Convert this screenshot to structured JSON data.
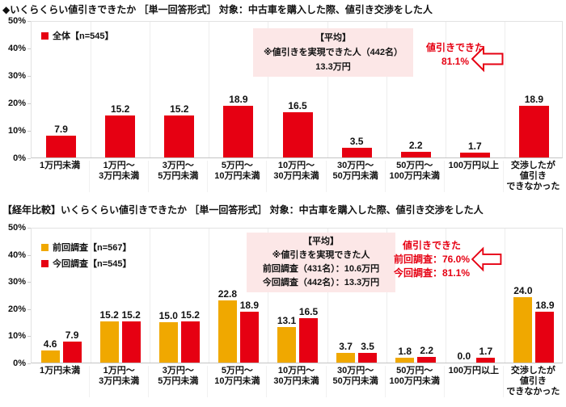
{
  "colors": {
    "red": "#E60012",
    "gold": "#F0A800",
    "annotation_bg": "#FCE7E7",
    "callout_text": "#E60012",
    "grid": "#EDEDED",
    "text": "#111111"
  },
  "y_axis": {
    "ticks": [
      "0%",
      "10%",
      "20%",
      "30%",
      "40%",
      "50%"
    ],
    "max": 50
  },
  "chart_data": [
    {
      "type": "bar",
      "title": "◆いくらくらい値引きできたか ［単一回答形式］ 対象：中古車を購入した際、値引き交渉をした人",
      "categories": [
        "1万円未満",
        "1万円～\n3万円未満",
        "3万円～\n5万円未満",
        "5万円～\n10万円未満",
        "10万円～\n30万円未満",
        "30万円～\n50万円未満",
        "50万円～\n100万円未満",
        "100万円以上",
        "交渉したが\n値引き\nできなかった"
      ],
      "series": [
        {
          "name": "全体【n=545】",
          "color": "#E60012",
          "values": [
            7.9,
            15.2,
            15.2,
            18.9,
            16.5,
            3.5,
            2.2,
            1.7,
            18.9
          ]
        }
      ],
      "ylim": [
        0,
        50
      ],
      "grid": "vertical-separators",
      "legend_position": "top-left",
      "annotation": {
        "lines": [
          "【平均】",
          "※値引きを実現できた人（442名）",
          "13.3万円"
        ]
      },
      "callout": {
        "lines": [
          "値引きできた",
          "81.1%"
        ]
      }
    },
    {
      "type": "bar",
      "title": "【経年比較】いくらくらい値引きできたか ［単一回答形式］ 対象：中古車を購入した際、値引き交渉をした人",
      "categories": [
        "1万円未満",
        "1万円～\n3万円未満",
        "3万円～\n5万円未満",
        "5万円～\n10万円未満",
        "10万円～\n30万円未満",
        "30万円～\n50万円未満",
        "50万円～\n100万円未満",
        "100万円以上",
        "交渉したが\n値引き\nできなかった"
      ],
      "series": [
        {
          "name": "前回調査【n=567】",
          "color": "#F0A800",
          "values": [
            4.6,
            15.2,
            15.0,
            22.8,
            13.1,
            3.7,
            1.8,
            0.0,
            24.0
          ]
        },
        {
          "name": "今回調査【n=545】",
          "color": "#E60012",
          "values": [
            7.9,
            15.2,
            15.2,
            18.9,
            16.5,
            3.5,
            2.2,
            1.7,
            18.9
          ]
        }
      ],
      "ylim": [
        0,
        50
      ],
      "grid": "vertical-separators",
      "legend_position": "top-left",
      "annotation": {
        "lines": [
          "【平均】",
          "※値引きを実現できた人",
          "前回調査（431名）：10.6万円",
          "今回調査（442名）：13.3万円"
        ]
      },
      "callout": {
        "lines": [
          "値引きできた",
          "前回調査：76.0%",
          "今回調査：81.1%"
        ]
      }
    }
  ]
}
